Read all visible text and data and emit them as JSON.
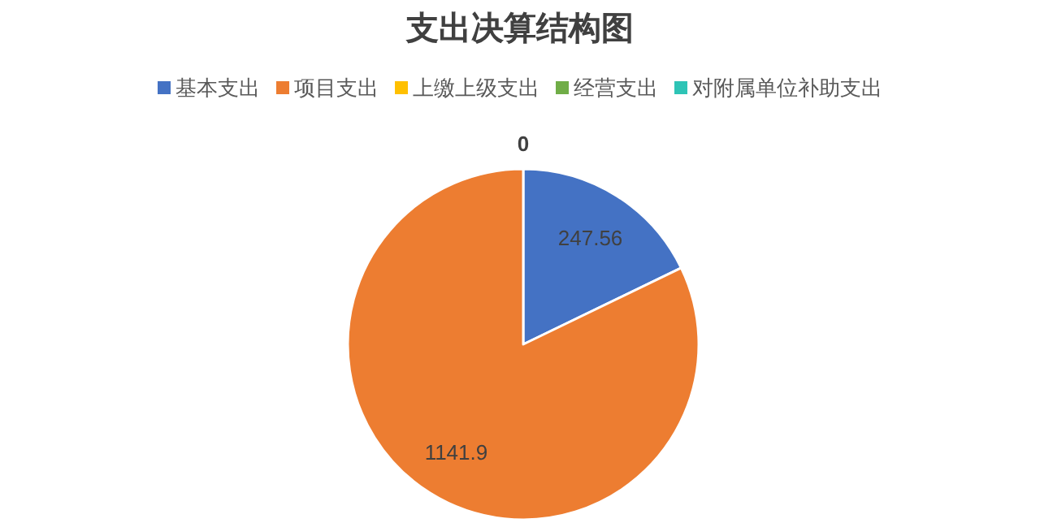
{
  "chart_data": {
    "type": "pie",
    "title": "支出决算结构图",
    "categories": [
      "基本支出",
      "项目支出",
      "上缴上级支出",
      "经营支出",
      "对附属单位补助支出"
    ],
    "values": [
      247.56,
      1141.9,
      0,
      0,
      0
    ],
    "colors": [
      "#4472c4",
      "#ed7d31",
      "#ffc000",
      "#70ad47",
      "#2ec4b6"
    ],
    "value_labels": [
      "247.56",
      "1141.9",
      "0",
      null,
      null
    ],
    "legend": "top"
  }
}
